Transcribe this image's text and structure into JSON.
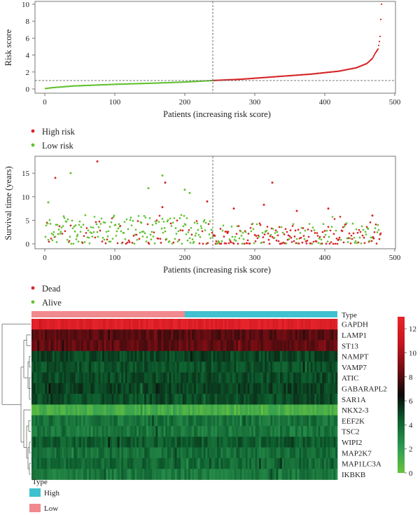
{
  "chart_data": [
    {
      "type": "line",
      "panel": "risk-score",
      "xlabel": "Patients (increasing risk score)",
      "ylabel": "Risk score",
      "xlim": [
        0,
        500
      ],
      "ylim": [
        0,
        10
      ],
      "xticks": [
        "0",
        "100",
        "200",
        "300",
        "400",
        "500"
      ],
      "yticks": [
        "0",
        "2",
        "4",
        "6",
        "8",
        "10"
      ],
      "cutoff_patient": 240,
      "cutoff_score": 1.0,
      "n_patients": 480,
      "curve_points": [
        [
          1,
          0.05
        ],
        [
          10,
          0.15
        ],
        [
          40,
          0.35
        ],
        [
          100,
          0.55
        ],
        [
          160,
          0.7
        ],
        [
          200,
          0.82
        ],
        [
          240,
          1.0
        ],
        [
          280,
          1.15
        ],
        [
          330,
          1.45
        ],
        [
          380,
          1.75
        ],
        [
          420,
          2.1
        ],
        [
          445,
          2.5
        ],
        [
          460,
          3.0
        ],
        [
          468,
          3.6
        ],
        [
          472,
          4.2
        ],
        [
          476,
          4.7
        ],
        [
          478,
          5.6
        ],
        [
          479,
          6.2
        ],
        [
          480,
          8.2
        ],
        [
          481,
          10.0
        ]
      ],
      "series": [
        {
          "name": "High risk",
          "color": "#d62728"
        },
        {
          "name": "Low risk",
          "color": "#63c132"
        }
      ],
      "legend_position": "bottom-left"
    },
    {
      "type": "scatter",
      "panel": "survival",
      "xlabel": "Patients (increasing risk score)",
      "ylabel": "Survival time (years)",
      "xlim": [
        0,
        500
      ],
      "ylim": [
        0,
        18
      ],
      "xticks": [
        "0",
        "100",
        "200",
        "300",
        "400",
        "500"
      ],
      "yticks": [
        "0",
        "5",
        "10",
        "15"
      ],
      "cutoff_patient": 240,
      "highlight_points": [
        {
          "x": 75,
          "y": 17.5,
          "status": "Dead"
        },
        {
          "x": 37,
          "y": 15.0,
          "status": "Alive"
        },
        {
          "x": 15,
          "y": 14.0,
          "status": "Dead"
        },
        {
          "x": 168,
          "y": 14.5,
          "status": "Alive"
        },
        {
          "x": 172,
          "y": 13.0,
          "status": "Dead"
        },
        {
          "x": 148,
          "y": 11.8,
          "status": "Alive"
        },
        {
          "x": 200,
          "y": 11.5,
          "status": "Alive"
        },
        {
          "x": 207,
          "y": 10.8,
          "status": "Alive"
        },
        {
          "x": 325,
          "y": 13.0,
          "status": "Dead"
        },
        {
          "x": 5,
          "y": 8.8,
          "status": "Alive"
        },
        {
          "x": 313,
          "y": 8.3,
          "status": "Dead"
        },
        {
          "x": 168,
          "y": 7.8,
          "status": "Dead"
        },
        {
          "x": 232,
          "y": 9.0,
          "status": "Dead"
        },
        {
          "x": 270,
          "y": 7.5,
          "status": "Dead"
        },
        {
          "x": 360,
          "y": 7.0,
          "status": "Dead"
        },
        {
          "x": 405,
          "y": 7.5,
          "status": "Dead"
        },
        {
          "x": 468,
          "y": 6.0,
          "status": "Dead"
        }
      ],
      "series": [
        {
          "name": "Dead",
          "color": "#d62728"
        },
        {
          "name": "Alive",
          "color": "#63c132"
        }
      ],
      "legend_position": "bottom-left"
    },
    {
      "type": "heatmap",
      "panel": "expression",
      "genes": [
        "GAPDH",
        "LAMP1",
        "ST13",
        "NAMPT",
        "VAMP7",
        "ATIC",
        "GABARAPL2",
        "SAR1A",
        "NKX2-3",
        "EEF2K",
        "TSC2",
        "WIPI2",
        "MAP2K7",
        "MAP1LC3A",
        "IKBKB"
      ],
      "gene_mean_expression": [
        12.3,
        8.2,
        8.4,
        4.8,
        4.6,
        4.7,
        5.0,
        4.7,
        1.2,
        3.5,
        3.4,
        4.3,
        3.7,
        3.9,
        3.3
      ],
      "colorbar_ticks": [
        "0",
        "2",
        "4",
        "6",
        "8",
        "10",
        "12"
      ],
      "colorbar_range": [
        0,
        13
      ],
      "colorbar_colors": [
        "#67c23c",
        "#2e9b52",
        "#0c5a2c",
        "#0a0a0a",
        "#6e0d12",
        "#c7161f",
        "#e8242c"
      ],
      "type_bar_label": "Type",
      "type_groups": [
        {
          "name": "High",
          "color": "#3fc1cf"
        },
        {
          "name": "Low",
          "color": "#f08a8e"
        }
      ],
      "legend_title": "Type"
    }
  ]
}
